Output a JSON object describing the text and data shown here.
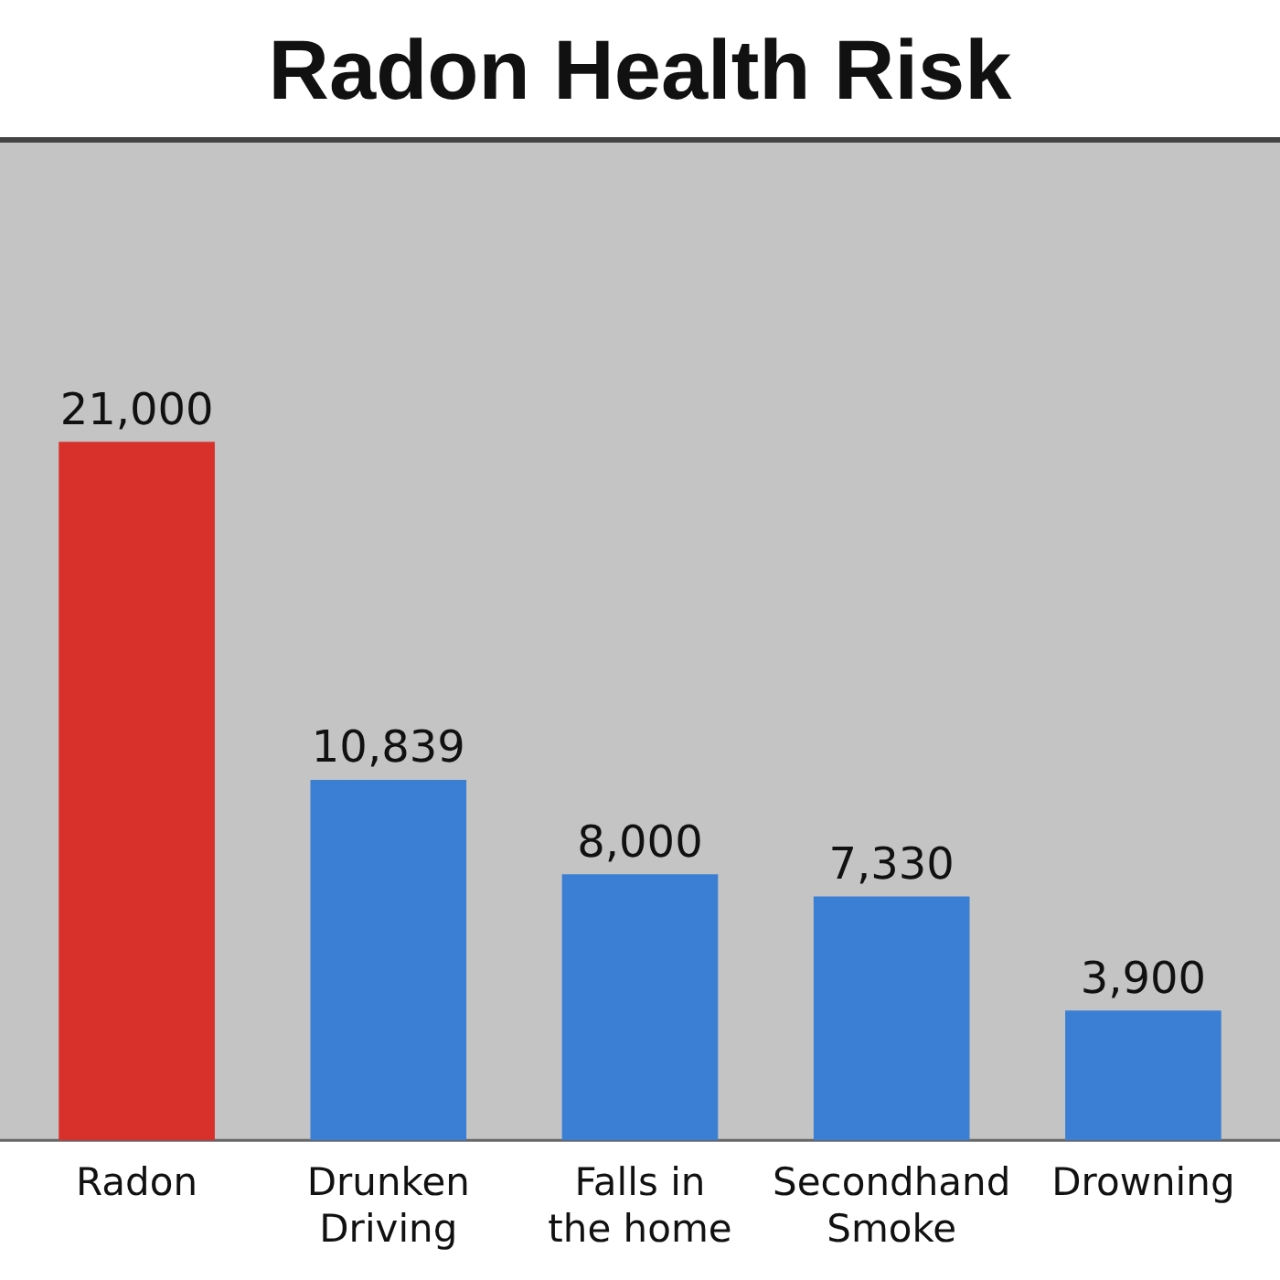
{
  "chart_data": {
    "type": "bar",
    "title": "Radon Health Risk",
    "categories": [
      "Radon",
      "Drunken Driving",
      "Falls in the home",
      "Secondhand Smoke",
      "Drowning"
    ],
    "values": [
      21000,
      10839,
      8000,
      7330,
      3900
    ],
    "colors": [
      "#d8302b",
      "#3b7fd4",
      "#3b7fd4",
      "#3b7fd4",
      "#3b7fd4"
    ],
    "value_labels": [
      "21,000",
      "10,839",
      "8,000",
      "7,330",
      "3,900"
    ],
    "grid": false,
    "legend": false
  }
}
